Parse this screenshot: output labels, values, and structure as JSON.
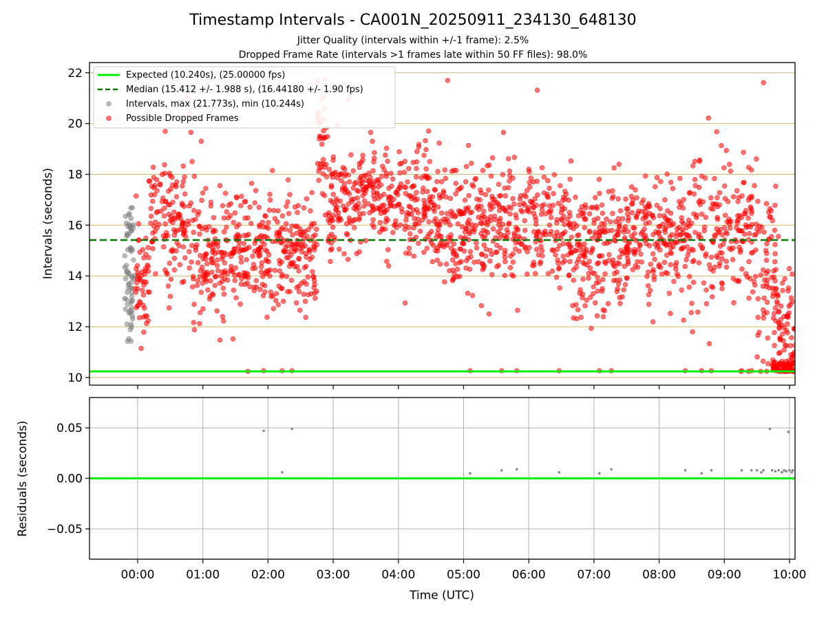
{
  "figure": {
    "title": "Timestamp Intervals - CA001N_20250911_234130_648130",
    "subtitle_1": "Jitter Quality (intervals within +/-1 frame): 2.5%",
    "subtitle_2": "Dropped Frame Rate (intervals >1 frames late within 50 FF files): 98.0%",
    "xlabel": "Time (UTC)"
  },
  "colors": {
    "expected": "#00ee00",
    "median": "#007700",
    "intervals": "#808080",
    "dropped": "#ff0000",
    "hgrid_top": "#d2b86a",
    "grid": "#b0b0b0"
  },
  "chart_data": [
    {
      "type": "scatter",
      "panel": "intervals",
      "ylabel": "Intervals (seconds)",
      "ylim": [
        9.7,
        22.4
      ],
      "xlim": [
        "23:43",
        "10:05"
      ],
      "y_ticks": [
        "10",
        "12",
        "14",
        "16",
        "18",
        "20",
        "22"
      ],
      "grid": "horizontal",
      "legend_position": "upper-left",
      "reference_lines": [
        {
          "name": "Expected (10.240s), (25.00000 fps)",
          "y": 10.24,
          "style": "solid"
        },
        {
          "name": "Median (15.412 +/- 1.988 s), (16.44180 +/- 1.90 fps)",
          "y": 15.412,
          "style": "dashed"
        }
      ],
      "series": [
        {
          "name": "Intervals, max (21.773s), min (10.244s)",
          "time_range": [
            "23:48",
            "23:57"
          ],
          "y_range": [
            11.4,
            16.7
          ],
          "max": 21.773,
          "min": 10.244
        },
        {
          "name": "Possible Dropped Frames",
          "segments": [
            {
              "from": "23:57",
              "to": "00:10",
              "center": 13.8,
              "spread": 0.9,
              "density": 2.5
            },
            {
              "from": "00:10",
              "to": "00:45",
              "center": 16.3,
              "spread": 1.2,
              "density": 2.2
            },
            {
              "from": "00:45",
              "to": "01:00",
              "center": 15.3,
              "spread": 1.5,
              "density": 2.0
            },
            {
              "from": "01:00",
              "to": "02:45",
              "center": 14.9,
              "spread": 1.1,
              "density": 2.3
            },
            {
              "from": "02:45",
              "to": "02:55",
              "center": 19.2,
              "spread": 0.9,
              "density": 2.5
            },
            {
              "from": "02:55",
              "to": "04:30",
              "center": 17.0,
              "spread": 1.0,
              "density": 2.2
            },
            {
              "from": "04:30",
              "to": "06:40",
              "center": 16.0,
              "spread": 1.1,
              "density": 2.2
            },
            {
              "from": "06:40",
              "to": "07:30",
              "center": 15.1,
              "spread": 1.2,
              "density": 2.3
            },
            {
              "from": "07:30",
              "to": "08:30",
              "center": 15.6,
              "spread": 1.1,
              "density": 2.2
            },
            {
              "from": "08:30",
              "to": "09:30",
              "center": 15.8,
              "spread": 1.4,
              "density": 2.0
            },
            {
              "from": "09:30",
              "to": "09:50",
              "center": 13.8,
              "spread": 1.6,
              "density": 2.5
            },
            {
              "from": "09:50",
              "to": "10:05",
              "center": 11.5,
              "spread": 1.2,
              "density": 3.0
            }
          ]
        }
      ]
    },
    {
      "type": "scatter",
      "panel": "residuals",
      "ylabel": "Residuals (seconds)",
      "ylim": [
        -0.08,
        0.08
      ],
      "y_ticks": [
        "0.05",
        "0.00",
        "−0.05"
      ],
      "x_ticks": [
        "00:00",
        "01:00",
        "02:00",
        "03:00",
        "04:00",
        "05:00",
        "06:00",
        "07:00",
        "08:00",
        "09:00",
        "10:00"
      ],
      "grid": "both",
      "reference_lines": [
        {
          "y": 0.0,
          "style": "solid"
        }
      ],
      "points": [
        {
          "x": "01:56",
          "y": 0.047
        },
        {
          "x": "02:13",
          "y": 0.006
        },
        {
          "x": "02:22",
          "y": 0.049
        },
        {
          "x": "05:06",
          "y": 0.005
        },
        {
          "x": "05:35",
          "y": 0.008
        },
        {
          "x": "05:49",
          "y": 0.009
        },
        {
          "x": "06:28",
          "y": 0.006
        },
        {
          "x": "07:05",
          "y": 0.005
        },
        {
          "x": "07:16",
          "y": 0.009
        },
        {
          "x": "08:24",
          "y": 0.008
        },
        {
          "x": "08:39",
          "y": 0.005
        },
        {
          "x": "08:48",
          "y": 0.008
        },
        {
          "x": "09:16",
          "y": 0.008
        },
        {
          "x": "09:25",
          "y": 0.008
        },
        {
          "x": "09:30",
          "y": 0.008
        },
        {
          "x": "09:34",
          "y": 0.006
        },
        {
          "x": "09:36",
          "y": 0.008
        },
        {
          "x": "09:42",
          "y": 0.049
        },
        {
          "x": "09:44",
          "y": 0.008
        },
        {
          "x": "09:47",
          "y": 0.007
        },
        {
          "x": "09:50",
          "y": 0.008
        },
        {
          "x": "09:53",
          "y": 0.006
        },
        {
          "x": "09:55",
          "y": 0.008
        },
        {
          "x": "09:57",
          "y": 0.007
        },
        {
          "x": "09:59",
          "y": 0.046
        },
        {
          "x": "10:00",
          "y": 0.008
        },
        {
          "x": "10:02",
          "y": 0.006
        },
        {
          "x": "10:03",
          "y": 0.008
        }
      ]
    }
  ]
}
